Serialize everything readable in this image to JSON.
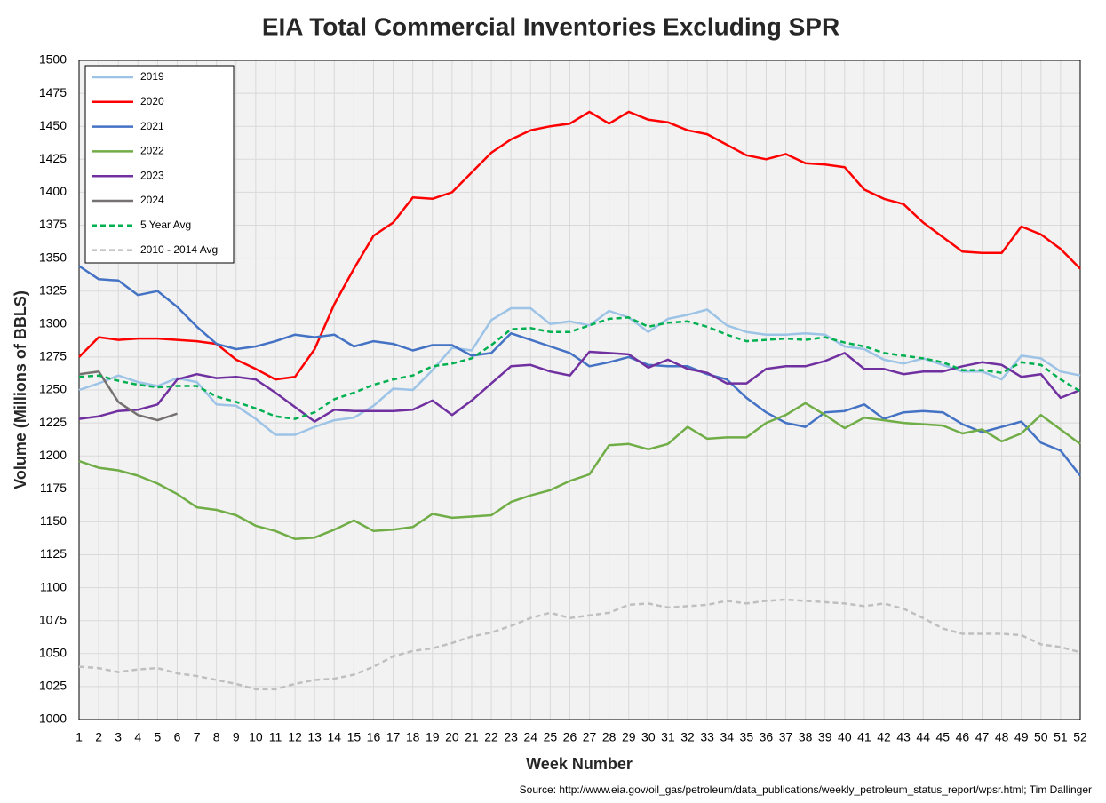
{
  "chart_data": {
    "type": "line",
    "title": "EIA Total Commercial Inventories Excluding SPR",
    "x_label": "Week Number",
    "y_label": "Volume (Millions of BBLS)",
    "source": "Source: http://www.eia.gov/oil_gas/petroleum/data_publications/weekly_petroleum_status_report/wpsr.html; Tim Dallinger",
    "x": [
      1,
      2,
      3,
      4,
      5,
      6,
      7,
      8,
      9,
      10,
      11,
      12,
      13,
      14,
      15,
      16,
      17,
      18,
      19,
      20,
      21,
      22,
      23,
      24,
      25,
      26,
      27,
      28,
      29,
      30,
      31,
      32,
      33,
      34,
      35,
      36,
      37,
      38,
      39,
      40,
      41,
      42,
      43,
      44,
      45,
      46,
      47,
      48,
      49,
      50,
      51,
      52
    ],
    "xlim": [
      1,
      52
    ],
    "xticks": [
      1,
      2,
      3,
      4,
      5,
      6,
      7,
      8,
      9,
      10,
      11,
      12,
      13,
      14,
      15,
      16,
      17,
      18,
      19,
      20,
      21,
      22,
      23,
      24,
      25,
      26,
      27,
      28,
      29,
      30,
      31,
      32,
      33,
      34,
      35,
      36,
      37,
      38,
      39,
      40,
      41,
      42,
      43,
      44,
      45,
      46,
      47,
      48,
      49,
      50,
      51,
      52
    ],
    "ylim": [
      1000,
      1500
    ],
    "yticks": [
      1000,
      1025,
      1050,
      1075,
      1100,
      1125,
      1150,
      1175,
      1200,
      1225,
      1250,
      1275,
      1300,
      1325,
      1350,
      1375,
      1400,
      1425,
      1450,
      1475,
      1500
    ],
    "grid": true,
    "legend": "top-left",
    "series": [
      {
        "name": "2019",
        "color": "#9dc3e6",
        "dashed": false,
        "values": [
          1250,
          1255,
          1261,
          1256,
          1253,
          1259,
          1256,
          1239,
          1238,
          1228,
          1216,
          1216,
          1222,
          1227,
          1229,
          1238,
          1251,
          1250,
          1265,
          1282,
          1280,
          1303,
          1312,
          1312,
          1300,
          1302,
          1299,
          1310,
          1305,
          1294,
          1304,
          1307,
          1311,
          1299,
          1294,
          1292,
          1292,
          1293,
          1292,
          1283,
          1281,
          1273,
          1270,
          1274,
          1269,
          1264,
          1264,
          1258,
          1276,
          1274,
          1264,
          1261
        ]
      },
      {
        "name": "2020",
        "color": "#ff0000",
        "dashed": false,
        "values": [
          1275,
          1290,
          1288,
          1289,
          1289,
          1288,
          1287,
          1285,
          1273,
          1266,
          1258,
          1260,
          1281,
          1315,
          1342,
          1367,
          1377,
          1396,
          1395,
          1400,
          1415,
          1430,
          1440,
          1447,
          1450,
          1452,
          1461,
          1452,
          1461,
          1455,
          1453,
          1447,
          1444,
          1436,
          1428,
          1425,
          1429,
          1422,
          1421,
          1419,
          1402,
          1395,
          1391,
          1377,
          1366,
          1355,
          1354,
          1354,
          1374,
          1368,
          1357,
          1342
        ]
      },
      {
        "name": "2021",
        "color": "#4472c4",
        "dashed": false,
        "values": [
          1344,
          1334,
          1333,
          1322,
          1325,
          1313,
          1298,
          1285,
          1281,
          1283,
          1287,
          1292,
          1290,
          1292,
          1283,
          1287,
          1285,
          1280,
          1284,
          1284,
          1276,
          1278,
          1293,
          1288,
          1283,
          1278,
          1268,
          1271,
          1275,
          1269,
          1268,
          1268,
          1262,
          1258,
          1244,
          1233,
          1225,
          1222,
          1233,
          1234,
          1239,
          1228,
          1233,
          1234,
          1233,
          1224,
          1218,
          1222,
          1226,
          1210,
          1204,
          1185
        ]
      },
      {
        "name": "2022",
        "color": "#70ad47",
        "dashed": false,
        "values": [
          1196,
          1191,
          1189,
          1185,
          1179,
          1171,
          1161,
          1159,
          1155,
          1147,
          1143,
          1137,
          1138,
          1144,
          1151,
          1143,
          1144,
          1146,
          1156,
          1153,
          1154,
          1155,
          1165,
          1170,
          1174,
          1181,
          1186,
          1208,
          1209,
          1205,
          1209,
          1222,
          1213,
          1214,
          1214,
          1225,
          1231,
          1240,
          1231,
          1221,
          1229,
          1227,
          1225,
          1224,
          1223,
          1217,
          1220,
          1211,
          1217,
          1231,
          1220,
          1209
        ]
      },
      {
        "name": "2023",
        "color": "#7030a0",
        "dashed": false,
        "values": [
          1228,
          1230,
          1234,
          1235,
          1239,
          1258,
          1262,
          1259,
          1260,
          1258,
          1248,
          1237,
          1226,
          1235,
          1234,
          1234,
          1234,
          1235,
          1242,
          1231,
          1242,
          1255,
          1268,
          1269,
          1264,
          1261,
          1279,
          1278,
          1277,
          1267,
          1273,
          1266,
          1263,
          1255,
          1255,
          1266,
          1268,
          1268,
          1272,
          1278,
          1266,
          1266,
          1262,
          1264,
          1264,
          1268,
          1271,
          1269,
          1260,
          1262,
          1244,
          1250
        ]
      },
      {
        "name": "2024",
        "color": "#767171",
        "dashed": false,
        "values": [
          1262,
          1264,
          1241,
          1231,
          1227,
          1232,
          null,
          null,
          null,
          null,
          null,
          null,
          null,
          null,
          null,
          null,
          null,
          null,
          null,
          null,
          null,
          null,
          null,
          null,
          null,
          null,
          null,
          null,
          null,
          null,
          null,
          null,
          null,
          null,
          null,
          null,
          null,
          null,
          null,
          null,
          null,
          null,
          null,
          null,
          null,
          null,
          null,
          null,
          null,
          null,
          null,
          null
        ]
      },
      {
        "name": "5 Year Avg",
        "color": "#00b050",
        "dashed": true,
        "values": [
          1260,
          1261,
          1257,
          1254,
          1252,
          1253,
          1253,
          1245,
          1241,
          1236,
          1230,
          1228,
          1233,
          1243,
          1248,
          1254,
          1258,
          1261,
          1268,
          1270,
          1274,
          1284,
          1296,
          1297,
          1294,
          1294,
          1299,
          1304,
          1305,
          1298,
          1301,
          1302,
          1298,
          1292,
          1287,
          1288,
          1289,
          1288,
          1290,
          1286,
          1283,
          1278,
          1276,
          1274,
          1271,
          1265,
          1265,
          1263,
          1271,
          1269,
          1258,
          1249
        ]
      },
      {
        "name": "2010 - 2014 Avg",
        "color": "#bfbfbf",
        "dashed": true,
        "values": [
          1040,
          1039,
          1036,
          1038,
          1039,
          1035,
          1033,
          1030,
          1027,
          1023,
          1023,
          1027,
          1030,
          1031,
          1034,
          1040,
          1048,
          1052,
          1054,
          1058,
          1063,
          1066,
          1071,
          1077,
          1081,
          1077,
          1079,
          1081,
          1087,
          1088,
          1085,
          1086,
          1087,
          1090,
          1088,
          1090,
          1091,
          1090,
          1089,
          1088,
          1086,
          1088,
          1084,
          1077,
          1069,
          1065,
          1065,
          1065,
          1064,
          1057,
          1055,
          1051
        ]
      }
    ]
  }
}
